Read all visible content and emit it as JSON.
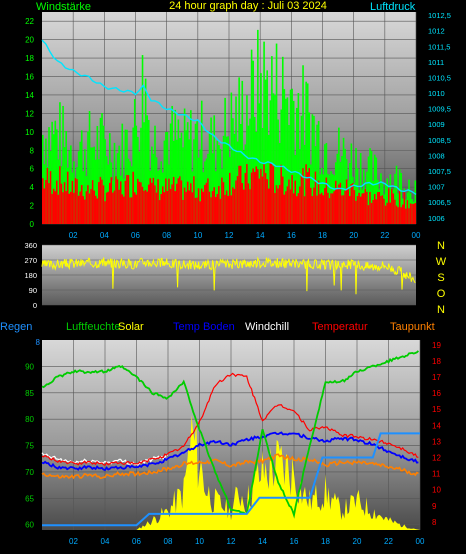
{
  "colors": {
    "background": "#000000",
    "wind": "#00ff00",
    "gust_red": "#ff0000",
    "pressure": "#00e5ff",
    "direction": "#ffff00",
    "regen": "#1e90ff",
    "luftfeuchte": "#00cc00",
    "solar": "#ffff00",
    "temp_boden": "#0000ff",
    "windchill": "#ffffff",
    "temperatur": "#ff0000",
    "taupunkt": "#ff8000",
    "axis_text": "#00aaff",
    "grid": "#555555"
  },
  "chart_data": [
    {
      "type": "line",
      "title": "24 hour graph day : Juli 03 2024",
      "left_label": "Windstärke",
      "right_label": "Luftdruck",
      "x_ticks": [
        "02",
        "04",
        "06",
        "08",
        "10",
        "12",
        "14",
        "16",
        "18",
        "20",
        "22",
        "00"
      ],
      "y_left_ticks": [
        "0",
        "2",
        "4",
        "6",
        "8",
        "10",
        "12",
        "14",
        "16",
        "18",
        "20",
        "22"
      ],
      "y_left_range": [
        0,
        23
      ],
      "y_right_ticks": [
        "1006",
        "1006,5",
        "1007",
        "1007,5",
        "1008",
        "1008,5",
        "1009",
        "1009,5",
        "1010",
        "1010,5",
        "1011",
        "1011,5",
        "1012",
        "1012,5"
      ],
      "y_right_range": [
        1005.8,
        1012.6
      ],
      "grid": true,
      "series": [
        {
          "name": "Windstärke",
          "x": [
            0,
            1,
            2,
            3,
            4,
            5,
            6,
            6.5,
            7,
            8,
            9,
            10,
            11,
            12,
            13,
            14,
            15,
            16,
            17,
            18,
            19,
            20,
            21,
            22,
            23,
            24
          ],
          "values": [
            10,
            10,
            8,
            9,
            9,
            8,
            11,
            16,
            9,
            10,
            9,
            10,
            9,
            11,
            13,
            16,
            15,
            14,
            12,
            9,
            8,
            7,
            6,
            5,
            5,
            4
          ]
        },
        {
          "x": [
            0,
            1,
            2,
            3,
            4,
            5,
            6,
            6.5,
            7,
            8,
            9,
            10,
            11,
            12,
            13,
            14,
            15,
            16,
            17,
            18,
            19,
            20,
            21,
            22,
            23,
            24
          ],
          "values": [
            5,
            5,
            4,
            4,
            4,
            4,
            5,
            6,
            4,
            4,
            4,
            4,
            4,
            5,
            5,
            6,
            5,
            5,
            5,
            4,
            4,
            4,
            3,
            3,
            3,
            2
          ]
        },
        {
          "name": "Luftdruck",
          "x": [
            0,
            1,
            2,
            3,
            4,
            5,
            6,
            6.5,
            7,
            8,
            9,
            10,
            11,
            12,
            13,
            14,
            15,
            16,
            17,
            18,
            19,
            20,
            21,
            22,
            23,
            24
          ],
          "values": [
            1011.7,
            1011.0,
            1010.7,
            1010.5,
            1010.2,
            1010.1,
            1010.0,
            1010.2,
            1009.8,
            1009.5,
            1009.3,
            1009.1,
            1008.6,
            1008.3,
            1008.0,
            1007.8,
            1007.7,
            1007.5,
            1007.3,
            1007.1,
            1006.9,
            1007.0,
            1007.1,
            1007.1,
            1006.9,
            1006.8
          ]
        }
      ]
    },
    {
      "type": "line",
      "title": "",
      "y_left_ticks": [
        "0",
        "90",
        "180",
        "270",
        "360"
      ],
      "y_left_range": [
        0,
        360
      ],
      "right_labels": [
        "N",
        "W",
        "S",
        "O",
        "N"
      ],
      "grid": true,
      "series": [
        {
          "x": [
            0,
            2,
            4,
            6,
            6.5,
            8,
            10,
            12,
            14,
            16,
            18,
            20,
            21,
            22,
            23,
            24
          ],
          "values": [
            240,
            250,
            255,
            245,
            260,
            250,
            240,
            245,
            255,
            250,
            240,
            245,
            230,
            240,
            200,
            150
          ]
        }
      ]
    },
    {
      "type": "line",
      "title": "",
      "x_ticks": [
        "02",
        "04",
        "06",
        "08",
        "10",
        "12",
        "14",
        "16",
        "18",
        "20",
        "22",
        "00"
      ],
      "y_left_ticks": [
        "60",
        "65",
        "70",
        "75",
        "80",
        "85",
        "90"
      ],
      "y_left_range": [
        59,
        95
      ],
      "y_right_ticks": [
        "8",
        "9",
        "10",
        "11",
        "12",
        "13",
        "14",
        "15",
        "16",
        "17",
        "18",
        "19"
      ],
      "y_right_range": [
        7.5,
        19.3
      ],
      "regen_axis": "8",
      "legend": [
        "Regen",
        "Luftfeuchte",
        "Solar",
        "Temp Boden",
        "Windchill",
        "Temperatur",
        "Taupunkt"
      ],
      "grid": true,
      "series": [
        {
          "name": "Luftfeuchte",
          "x": [
            0,
            1,
            2,
            3,
            4,
            5,
            6,
            7,
            8,
            9,
            10,
            11,
            12,
            13,
            14,
            15,
            16,
            17,
            18,
            19,
            20,
            21,
            22,
            23,
            24
          ],
          "values": [
            86,
            88,
            89,
            89,
            89,
            90,
            88,
            85,
            84,
            87,
            78,
            70,
            63,
            62,
            78,
            68,
            62,
            75,
            87,
            87,
            89,
            90,
            91,
            92,
            93
          ]
        },
        {
          "name": "Temperatur",
          "x": [
            0,
            1,
            2,
            3,
            4,
            5,
            6,
            7,
            8,
            9,
            10,
            11,
            12,
            13,
            14,
            15,
            16,
            17,
            18,
            19,
            20,
            21,
            22,
            23,
            24
          ],
          "values": [
            12.1,
            11.8,
            11.6,
            11.7,
            11.6,
            11.7,
            11.6,
            11.9,
            12.2,
            12.7,
            14.2,
            16.5,
            17.2,
            17.0,
            14.3,
            15.3,
            14.9,
            13.7,
            13.9,
            13.4,
            13.3,
            13.1,
            12.9,
            12.5,
            12.0
          ]
        },
        {
          "name": "Temp Boden",
          "x": [
            0,
            1,
            2,
            3,
            4,
            5,
            6,
            7,
            8,
            9,
            10,
            11,
            12,
            13,
            14,
            15,
            16,
            17,
            18,
            19,
            20,
            21,
            22,
            23,
            24
          ],
          "values": [
            11.7,
            11.4,
            11.3,
            11.4,
            11.3,
            11.4,
            11.4,
            11.6,
            11.9,
            12.3,
            12.8,
            13.0,
            12.8,
            13.1,
            13.3,
            13.5,
            13.5,
            13.2,
            13.0,
            13.2,
            13.1,
            12.8,
            12.4,
            12.0,
            11.7
          ]
        },
        {
          "name": "Taupunkt",
          "x": [
            0,
            1,
            2,
            3,
            4,
            5,
            6,
            7,
            8,
            9,
            10,
            11,
            12,
            13,
            14,
            15,
            16,
            17,
            18,
            19,
            20,
            21,
            22,
            23,
            24
          ],
          "values": [
            11.0,
            10.8,
            10.8,
            10.9,
            10.8,
            11.0,
            11.0,
            11.1,
            11.3,
            11.6,
            11.7,
            11.8,
            11.5,
            11.7,
            11.8,
            12.1,
            11.9,
            11.9,
            11.5,
            11.7,
            11.7,
            11.6,
            11.4,
            11.2,
            10.9
          ]
        },
        {
          "name": "Windchill",
          "x": [
            0,
            1,
            2,
            3,
            4,
            5,
            6,
            7,
            8
          ],
          "values": [
            12.2,
            11.9,
            11.7,
            11.8,
            11.7,
            11.8,
            11.6,
            11.9,
            12.1
          ]
        },
        {
          "name": "Regen",
          "x": [
            0,
            6,
            6.8,
            13,
            13.8,
            17,
            17.8,
            21,
            21.5,
            24
          ],
          "values": [
            7.8,
            7.8,
            8.5,
            8.5,
            9.5,
            9.5,
            12,
            12,
            13.5,
            13.5
          ]
        },
        {
          "name": "Solar",
          "x": [
            0,
            6,
            7,
            8,
            9,
            9.5,
            10,
            10.5,
            11,
            12,
            12.5,
            13,
            13.5,
            14,
            15,
            16,
            16.5,
            17,
            18,
            19,
            20,
            21,
            22,
            23,
            24
          ],
          "values": [
            0,
            0,
            0.05,
            0.1,
            0.2,
            0.5,
            0.35,
            0.2,
            0.15,
            0.1,
            0.2,
            0.15,
            0.25,
            0.3,
            0.35,
            0.3,
            0.2,
            0.15,
            0.2,
            0.1,
            0.15,
            0.1,
            0.05,
            0.02,
            0
          ]
        }
      ]
    }
  ]
}
